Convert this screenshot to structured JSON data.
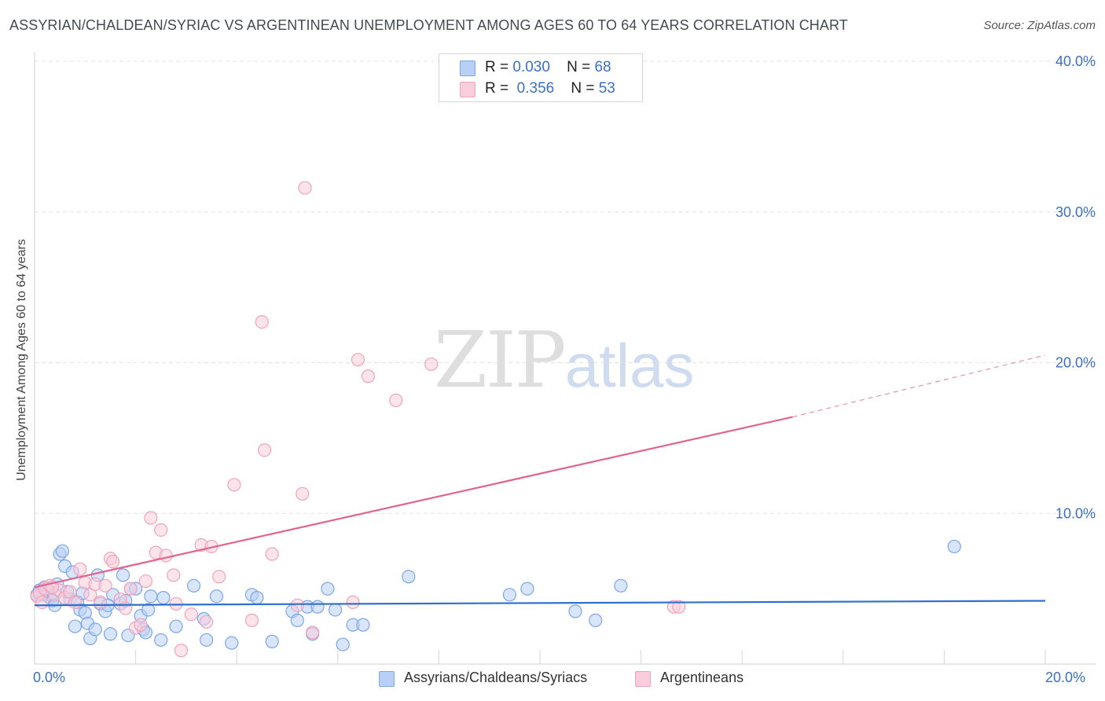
{
  "chart_data": {
    "type": "scatter",
    "title": "ASSYRIAN/CHALDEAN/SYRIAC VS ARGENTINEAN UNEMPLOYMENT AMONG AGES 60 TO 64 YEARS CORRELATION CHART",
    "source": "Source: ZipAtlas.com",
    "xlabel": "",
    "ylabel": "Unemployment Among Ages 60 to 64 years",
    "xlim": [
      0,
      20
    ],
    "ylim": [
      0,
      40
    ],
    "x_tick_labels": [
      "0.0%",
      "20.0%"
    ],
    "y_ticks": [
      10,
      20,
      30,
      40
    ],
    "y_tick_labels": [
      "10.0%",
      "20.0%",
      "30.0%",
      "40.0%"
    ],
    "grid": true,
    "watermark": {
      "zip": "ZIP",
      "atlas": "atlas"
    },
    "stats": [
      {
        "r_label": "R =",
        "r": "0.030",
        "n_label": "N =",
        "n": "68"
      },
      {
        "r_label": "R =",
        "r": "0.356",
        "n_label": "N =",
        "n": "53"
      }
    ],
    "series": [
      {
        "name": "Assyrians/Chaldeans/Syriacs",
        "color": "#7ba7e8",
        "fill": "#b8d0f5",
        "trend_color": "#2f6fcd",
        "trend": {
          "x1": 0,
          "y1": 3.9,
          "x2": 20,
          "y2": 4.2
        },
        "points": [
          [
            0.1,
            4.9
          ],
          [
            0.15,
            4.6
          ],
          [
            0.2,
            5.1
          ],
          [
            0.3,
            4.4
          ],
          [
            0.35,
            4.2
          ],
          [
            0.4,
            3.9
          ],
          [
            0.45,
            5.3
          ],
          [
            0.5,
            7.3
          ],
          [
            0.55,
            7.5
          ],
          [
            0.6,
            6.5
          ],
          [
            0.7,
            4.3
          ],
          [
            0.75,
            6.1
          ],
          [
            0.8,
            2.5
          ],
          [
            0.85,
            4.1
          ],
          [
            0.9,
            3.6
          ],
          [
            0.95,
            4.7
          ],
          [
            1.0,
            3.4
          ],
          [
            1.05,
            2.7
          ],
          [
            1.1,
            1.7
          ],
          [
            1.2,
            2.3
          ],
          [
            1.25,
            5.9
          ],
          [
            1.3,
            4.0
          ],
          [
            1.4,
            3.5
          ],
          [
            1.5,
            2.0
          ],
          [
            1.55,
            4.6
          ],
          [
            1.7,
            4.0
          ],
          [
            1.75,
            5.9
          ],
          [
            1.8,
            4.2
          ],
          [
            1.85,
            1.9
          ],
          [
            1.9,
            5.0
          ],
          [
            2.0,
            5.0
          ],
          [
            2.1,
            3.2
          ],
          [
            2.15,
            2.3
          ],
          [
            2.2,
            2.1
          ],
          [
            2.25,
            3.6
          ],
          [
            2.3,
            4.5
          ],
          [
            2.5,
            1.6
          ],
          [
            2.55,
            4.4
          ],
          [
            2.8,
            2.5
          ],
          [
            3.15,
            5.2
          ],
          [
            3.35,
            3.0
          ],
          [
            3.4,
            1.6
          ],
          [
            3.6,
            4.5
          ],
          [
            3.9,
            1.4
          ],
          [
            4.3,
            4.6
          ],
          [
            4.4,
            4.4
          ],
          [
            4.7,
            1.5
          ],
          [
            5.1,
            3.5
          ],
          [
            5.2,
            2.9
          ],
          [
            5.4,
            3.8
          ],
          [
            5.5,
            2.0
          ],
          [
            5.6,
            3.8
          ],
          [
            5.8,
            5.0
          ],
          [
            5.95,
            3.6
          ],
          [
            6.1,
            1.3
          ],
          [
            6.3,
            2.6
          ],
          [
            6.5,
            2.6
          ],
          [
            7.4,
            5.8
          ],
          [
            9.4,
            4.6
          ],
          [
            9.75,
            5.0
          ],
          [
            10.7,
            3.5
          ],
          [
            11.1,
            2.9
          ],
          [
            11.6,
            5.2
          ],
          [
            18.2,
            7.8
          ],
          [
            0.05,
            4.6
          ],
          [
            0.25,
            5.0
          ],
          [
            0.65,
            4.8
          ],
          [
            1.45,
            3.9
          ]
        ]
      },
      {
        "name": "Argentineans",
        "color": "#f0a3bc",
        "fill": "#f9cddb",
        "trend_color": "#e0648e",
        "trend": {
          "x1": 0,
          "y1": 5.1,
          "x2": 15,
          "y2": 16.4
        },
        "trend_dashed": {
          "x1": 15,
          "y1": 16.4,
          "x2": 20,
          "y2": 20.5
        },
        "points": [
          [
            0.05,
            4.5
          ],
          [
            0.1,
            4.7
          ],
          [
            0.2,
            5.0
          ],
          [
            0.3,
            5.2
          ],
          [
            0.4,
            4.6
          ],
          [
            0.5,
            4.9
          ],
          [
            0.6,
            4.4
          ],
          [
            0.7,
            4.8
          ],
          [
            0.8,
            4.1
          ],
          [
            0.9,
            6.3
          ],
          [
            1.0,
            5.4
          ],
          [
            1.1,
            4.6
          ],
          [
            1.2,
            5.3
          ],
          [
            1.3,
            4.1
          ],
          [
            1.4,
            5.2
          ],
          [
            1.5,
            7.0
          ],
          [
            1.55,
            6.8
          ],
          [
            1.7,
            4.3
          ],
          [
            1.8,
            3.7
          ],
          [
            1.9,
            5.0
          ],
          [
            2.0,
            2.4
          ],
          [
            2.1,
            2.6
          ],
          [
            2.2,
            5.5
          ],
          [
            2.3,
            9.7
          ],
          [
            2.4,
            7.4
          ],
          [
            2.5,
            8.9
          ],
          [
            2.6,
            7.2
          ],
          [
            2.75,
            5.9
          ],
          [
            2.8,
            4.0
          ],
          [
            2.9,
            0.9
          ],
          [
            3.1,
            3.3
          ],
          [
            3.3,
            7.9
          ],
          [
            3.4,
            2.8
          ],
          [
            3.5,
            7.8
          ],
          [
            3.65,
            5.8
          ],
          [
            3.95,
            11.9
          ],
          [
            4.3,
            2.9
          ],
          [
            4.5,
            22.7
          ],
          [
            4.55,
            14.2
          ],
          [
            4.7,
            7.3
          ],
          [
            5.2,
            3.9
          ],
          [
            5.3,
            11.3
          ],
          [
            5.35,
            31.6
          ],
          [
            5.5,
            2.1
          ],
          [
            6.3,
            4.1
          ],
          [
            6.4,
            20.2
          ],
          [
            6.6,
            19.1
          ],
          [
            7.15,
            17.5
          ],
          [
            7.85,
            19.9
          ],
          [
            12.65,
            3.8
          ],
          [
            12.75,
            3.8
          ],
          [
            0.15,
            4.1
          ],
          [
            0.35,
            5.1
          ]
        ]
      }
    ]
  }
}
